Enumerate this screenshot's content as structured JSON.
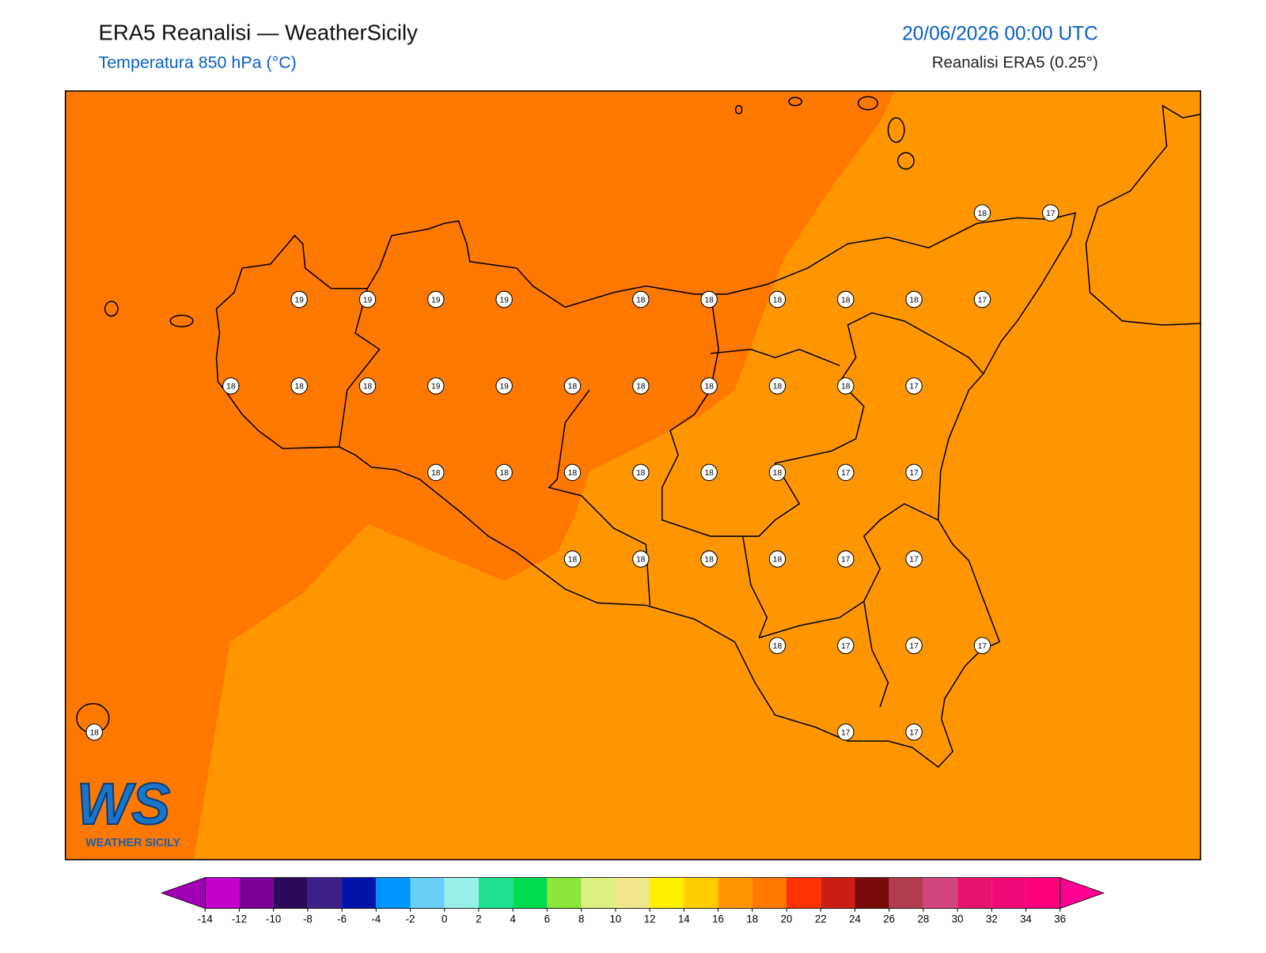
{
  "header": {
    "title": "ERA5 Reanalisi — WeatherSicily",
    "subtitle": "Temperatura 850 hPa (°C)",
    "date": "20/06/2026 00:00 UTC",
    "source": "Reanalisi ERA5 (0.25°)"
  },
  "logo": {
    "letters": "WS",
    "name": "WEATHER SICILY"
  },
  "map": {
    "labels": [
      18,
      17,
      19,
      19,
      19,
      19,
      18,
      18,
      18,
      18,
      18,
      17,
      18,
      18,
      18,
      19,
      19,
      18,
      18,
      18,
      18,
      18,
      17,
      18,
      18,
      18,
      18,
      18,
      18,
      17,
      17,
      18,
      18,
      18,
      18,
      17,
      17,
      18,
      17,
      17,
      17,
      18,
      17,
      17
    ]
  },
  "colorbar": {
    "ticks": [
      -14,
      -12,
      -10,
      -8,
      -6,
      -4,
      -2,
      0,
      2,
      4,
      6,
      8,
      10,
      12,
      14,
      16,
      18,
      20,
      22,
      24,
      26,
      28,
      30,
      32,
      34,
      36
    ],
    "colors": [
      "#a000b4",
      "#c400cc",
      "#7a0096",
      "#2c0a5a",
      "#3c2088",
      "#0014a8",
      "#0096ff",
      "#6ccff6",
      "#98f0e8",
      "#1ee090",
      "#00dc50",
      "#8ce63c",
      "#dcf082",
      "#f0e68c",
      "#fff000",
      "#ffcd00",
      "#ff9600",
      "#ff7800",
      "#ff3200",
      "#cd1e14",
      "#780a0a",
      "#b43c50",
      "#d2467d",
      "#e6146e",
      "#f00a78",
      "#ff007e",
      "#ff0090"
    ]
  }
}
